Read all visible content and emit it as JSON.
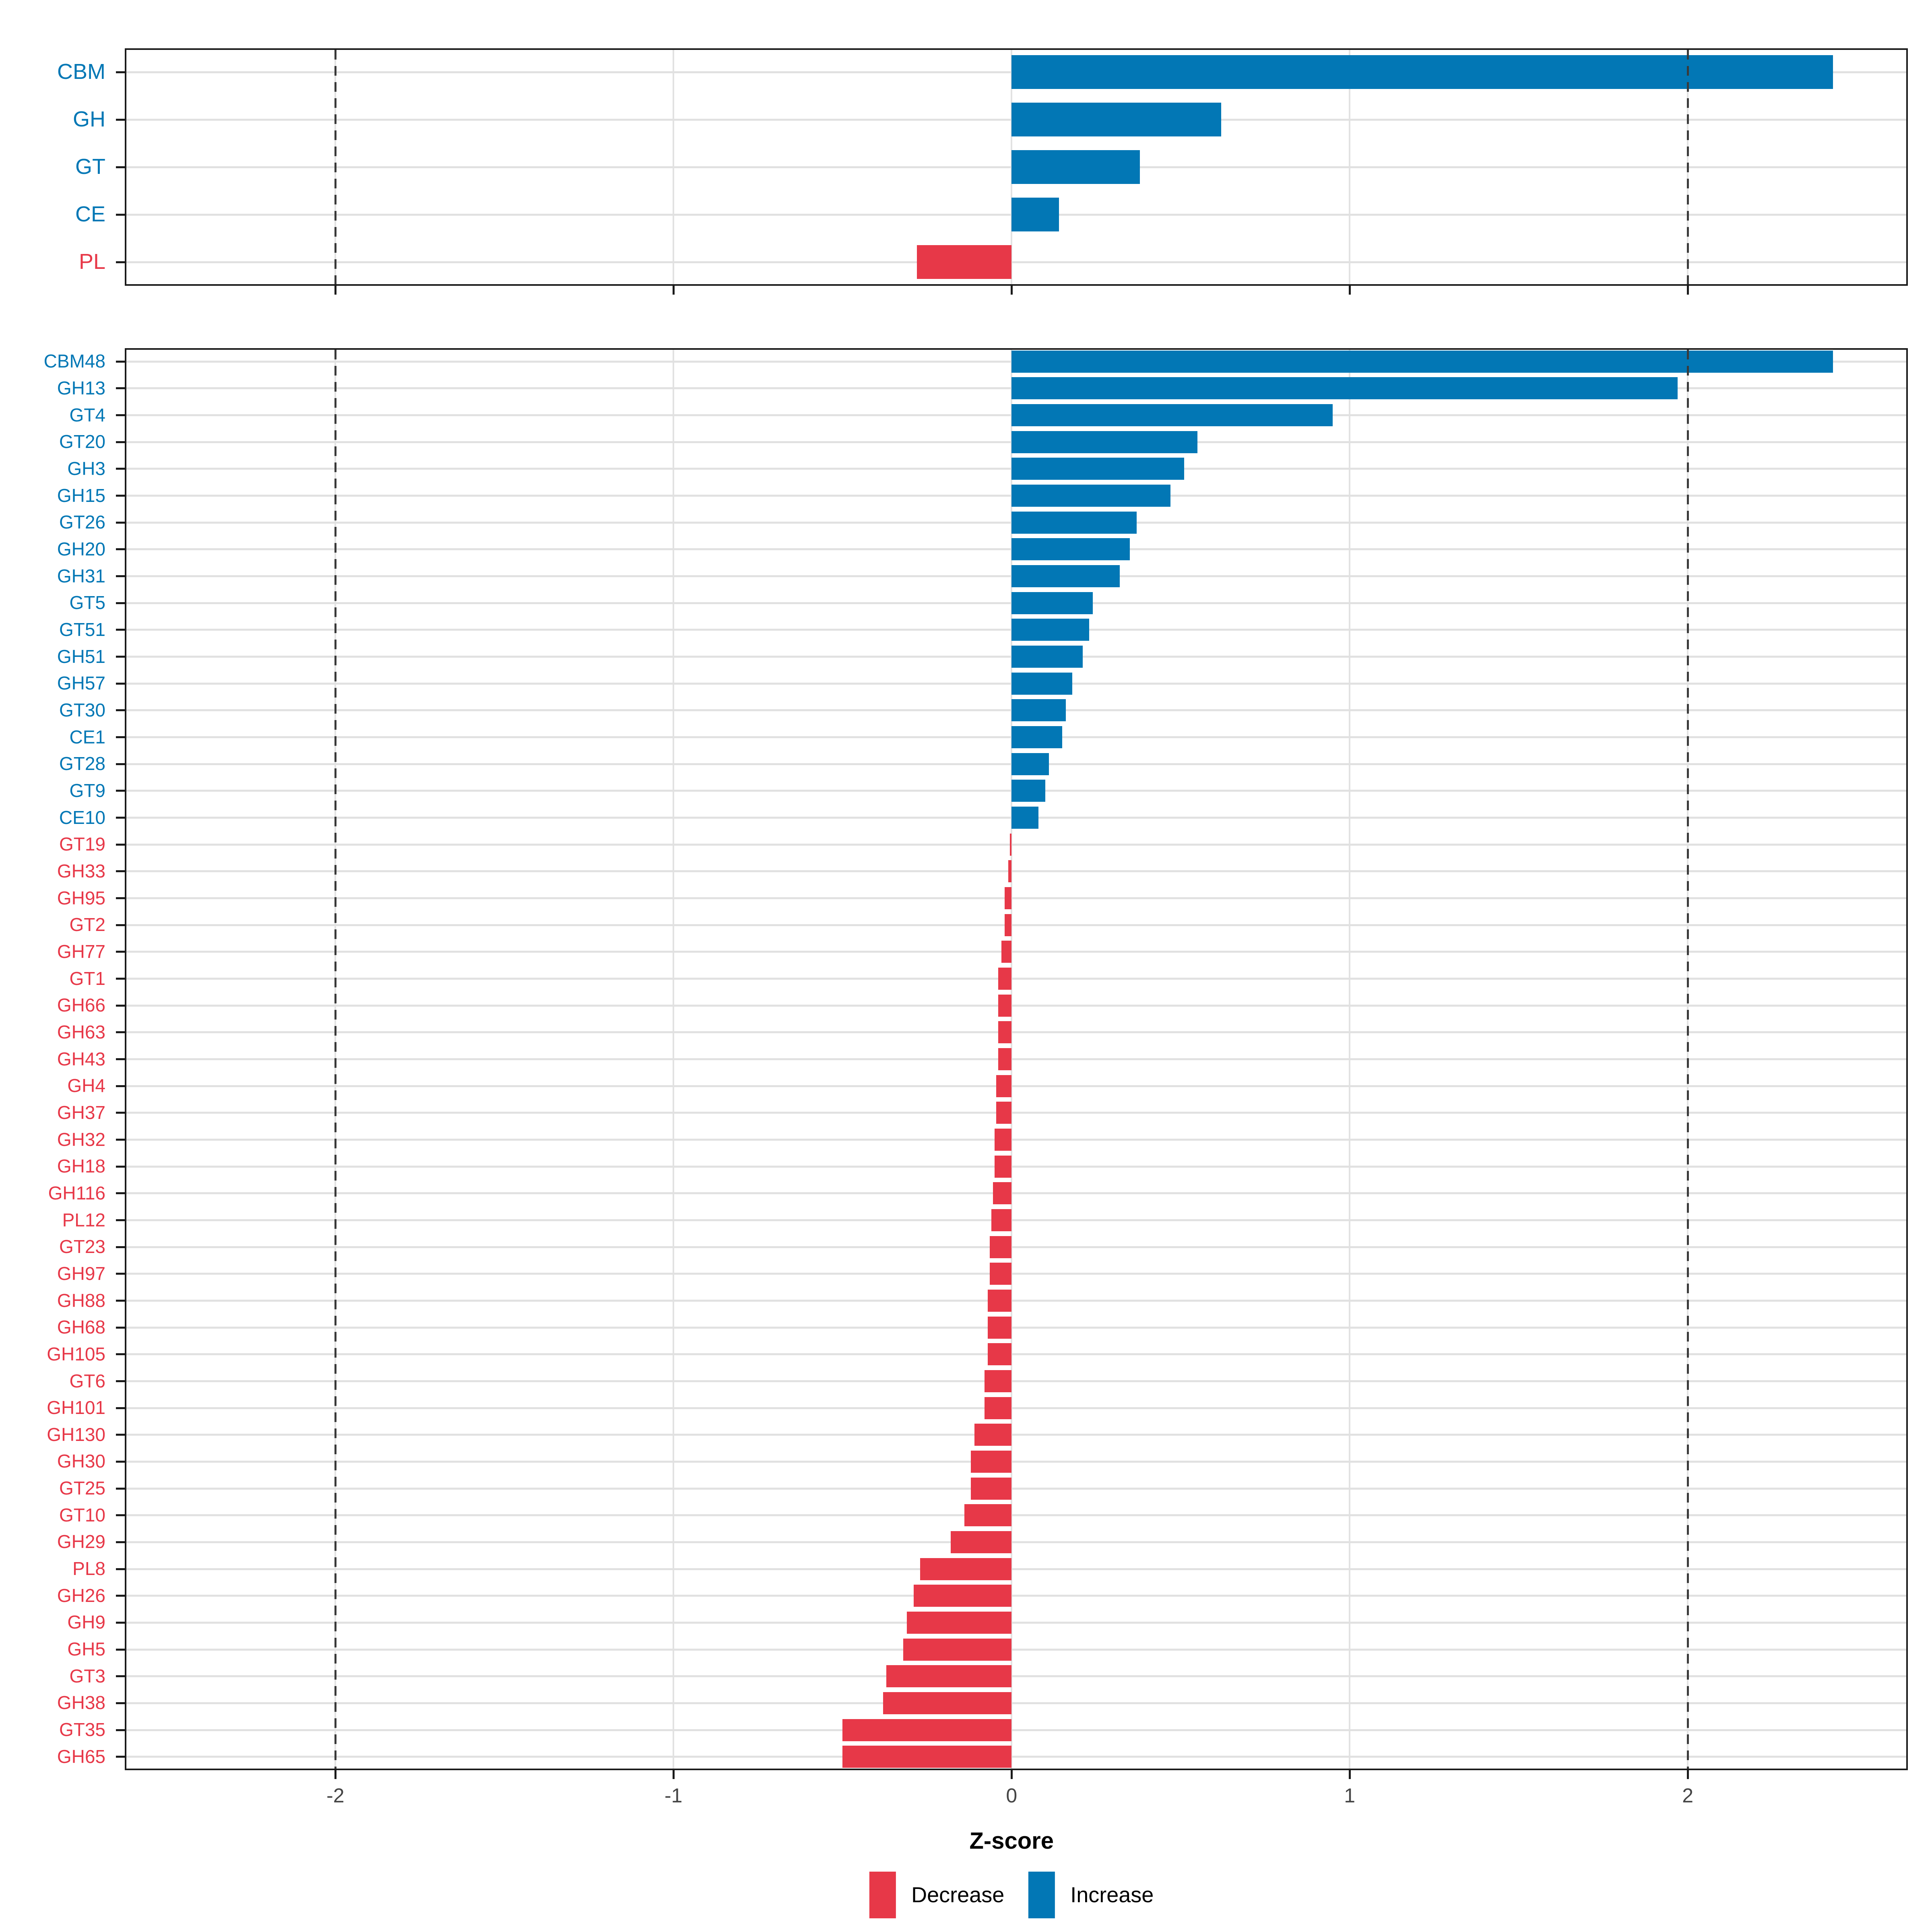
{
  "axis": {
    "xlabel": "Z-score",
    "tick_values": [
      -2,
      -1,
      0,
      1,
      2
    ],
    "tick_labels": [
      "-2",
      "-1",
      "0",
      "1",
      "2"
    ],
    "xlim": [
      -2.623,
      2.651
    ],
    "reference_lines": [
      -2,
      2
    ]
  },
  "legend": {
    "items": [
      {
        "label": "Decrease",
        "color": "#E73848"
      },
      {
        "label": "Increase",
        "color": "#0277B5"
      }
    ]
  },
  "colors": {
    "increase": "#0277B5",
    "decrease": "#E73848",
    "gridline": "#E2E2E2",
    "dashed_line": "#3A3A3A",
    "panel_border": "#1B1B1B",
    "tick_label": "#454545"
  },
  "chart_data": [
    {
      "type": "bar",
      "orientation": "horizontal",
      "panel": "enzyme-class",
      "grid": "major",
      "xlabel": "Z-score",
      "xlim": [
        -2.623,
        2.651
      ],
      "categories": [
        "CBM",
        "GH",
        "GT",
        "CE",
        "PL"
      ],
      "values": [
        2.43,
        0.62,
        0.38,
        0.14,
        -0.28
      ]
    },
    {
      "type": "bar",
      "orientation": "horizontal",
      "panel": "enzyme-family",
      "grid": "major",
      "xlabel": "Z-score",
      "xlim": [
        -2.623,
        2.651
      ],
      "categories": [
        "CBM48",
        "GH13",
        "GT4",
        "GT20",
        "GH3",
        "GH15",
        "GT26",
        "GH20",
        "GH31",
        "GT5",
        "GT51",
        "GH51",
        "GH57",
        "GT30",
        "CE1",
        "GT28",
        "GT9",
        "CE10",
        "GT19",
        "GH33",
        "GH95",
        "GT2",
        "GH77",
        "GT1",
        "GH66",
        "GH63",
        "GH43",
        "GH4",
        "GH37",
        "GH32",
        "GH18",
        "GH116",
        "PL12",
        "GT23",
        "GH97",
        "GH88",
        "GH68",
        "GH105",
        "GT6",
        "GH101",
        "GH130",
        "GH30",
        "GT25",
        "GT10",
        "GH29",
        "PL8",
        "GH26",
        "GH9",
        "GH5",
        "GT3",
        "GH38",
        "GT35",
        "GH65"
      ],
      "values": [
        2.43,
        1.97,
        0.95,
        0.55,
        0.51,
        0.47,
        0.37,
        0.35,
        0.32,
        0.24,
        0.23,
        0.21,
        0.18,
        0.16,
        0.15,
        0.11,
        0.1,
        0.08,
        -0.005,
        -0.01,
        -0.02,
        -0.02,
        -0.03,
        -0.04,
        -0.04,
        -0.04,
        -0.04,
        -0.045,
        -0.045,
        -0.05,
        -0.05,
        -0.055,
        -0.06,
        -0.065,
        -0.065,
        -0.07,
        -0.07,
        -0.07,
        -0.08,
        -0.08,
        -0.11,
        -0.12,
        -0.12,
        -0.14,
        -0.18,
        -0.27,
        -0.29,
        -0.31,
        -0.32,
        -0.37,
        -0.38,
        -0.5,
        -0.5
      ]
    }
  ]
}
